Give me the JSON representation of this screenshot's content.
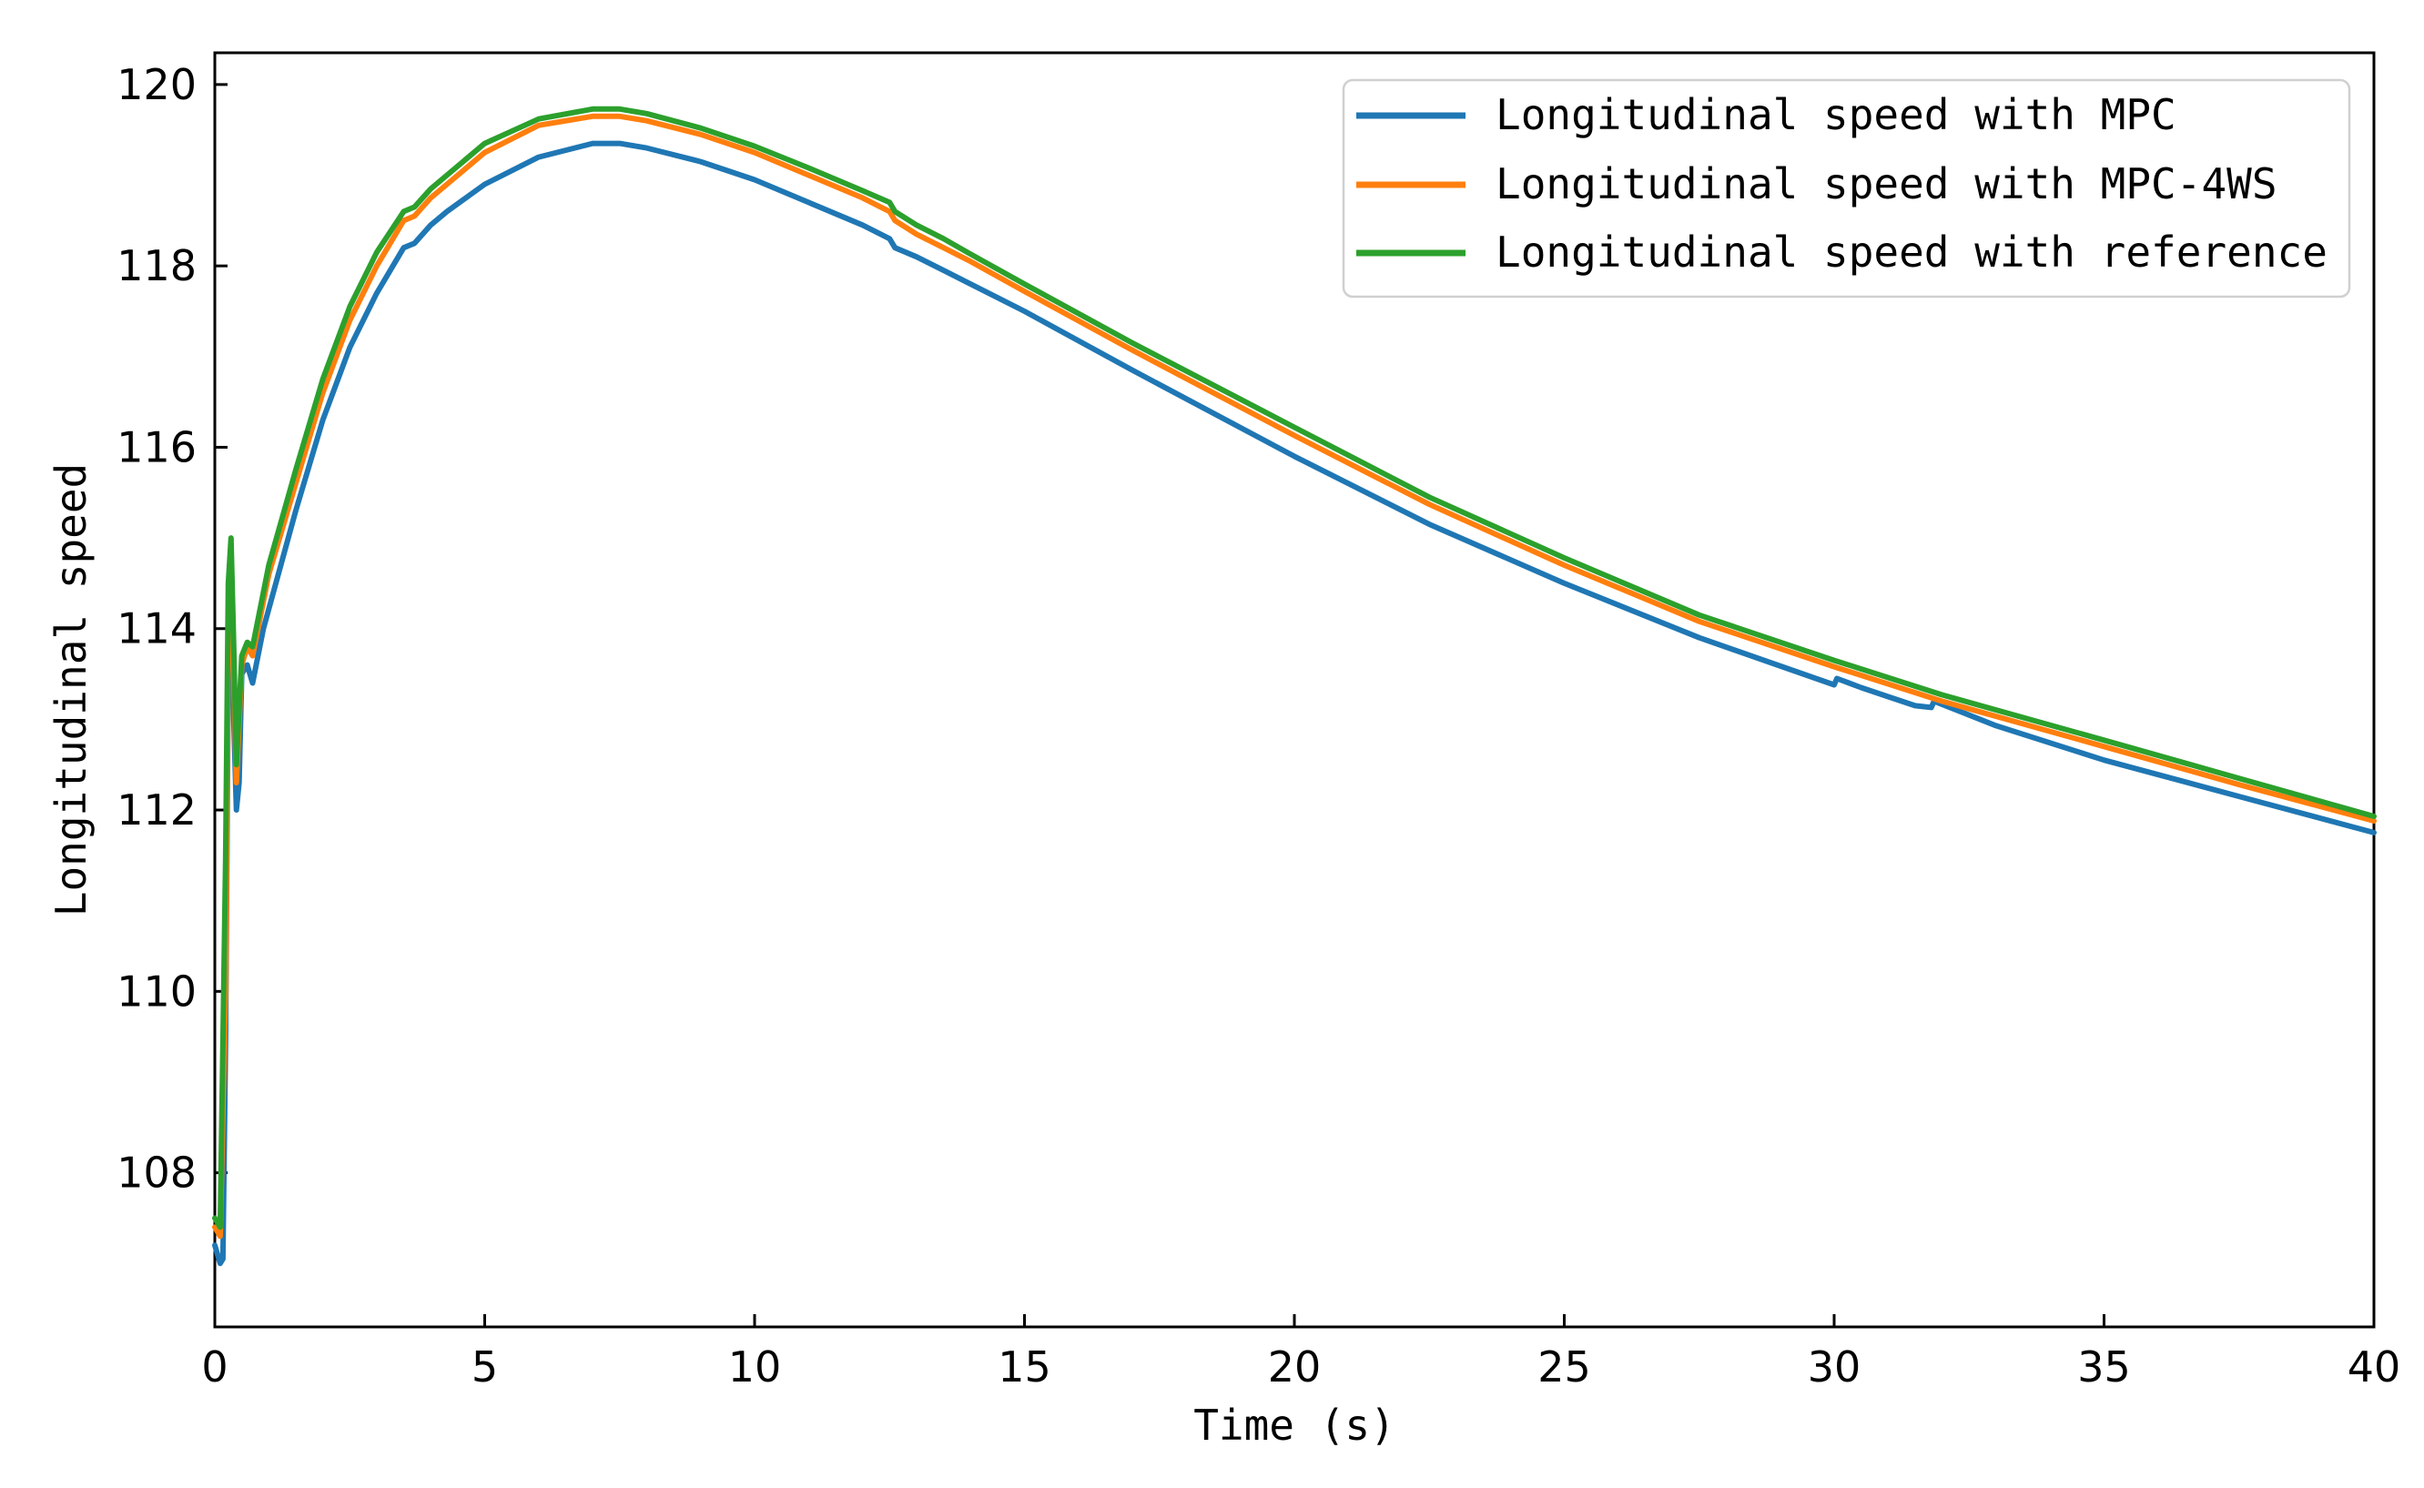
{
  "chart_data": {
    "type": "line",
    "title": "",
    "xlabel": "Time (s)",
    "ylabel": "Longitudinal speed",
    "xlim": [
      0,
      40
    ],
    "ylim": [
      106.3,
      120.35
    ],
    "xticks": [
      0,
      5,
      10,
      15,
      20,
      25,
      30,
      35,
      40
    ],
    "yticks": [
      108,
      110,
      112,
      114,
      116,
      118,
      120
    ],
    "grid": false,
    "legend_position": "top-right",
    "series": [
      {
        "name": "Longitudinal speed with MPC",
        "color": "#1f77b4",
        "points": [
          [
            0,
            107.2
          ],
          [
            0.1,
            107.0
          ],
          [
            0.15,
            107.05
          ],
          [
            0.2,
            109.5
          ],
          [
            0.25,
            113.5
          ],
          [
            0.3,
            114.8
          ],
          [
            0.35,
            113.0
          ],
          [
            0.4,
            112.0
          ],
          [
            0.45,
            112.3
          ],
          [
            0.5,
            113.5
          ],
          [
            0.6,
            113.6
          ],
          [
            0.7,
            113.4
          ],
          [
            0.9,
            114.0
          ],
          [
            1.5,
            115.3
          ],
          [
            2.0,
            116.3
          ],
          [
            2.5,
            117.1
          ],
          [
            3.0,
            117.7
          ],
          [
            3.5,
            118.2
          ],
          [
            3.7,
            118.25
          ],
          [
            4.0,
            118.45
          ],
          [
            4.3,
            118.6
          ],
          [
            5.0,
            118.9
          ],
          [
            6.0,
            119.2
          ],
          [
            7.0,
            119.35
          ],
          [
            7.5,
            119.35
          ],
          [
            8.0,
            119.3
          ],
          [
            9.0,
            119.15
          ],
          [
            10.0,
            118.95
          ],
          [
            11.0,
            118.7
          ],
          [
            12.0,
            118.45
          ],
          [
            12.5,
            118.3
          ],
          [
            12.6,
            118.2
          ],
          [
            13.0,
            118.1
          ],
          [
            13.5,
            117.95
          ],
          [
            14.0,
            117.8
          ],
          [
            15.0,
            117.5
          ],
          [
            17.0,
            116.85
          ],
          [
            20.0,
            115.9
          ],
          [
            22.5,
            115.15
          ],
          [
            25.0,
            114.5
          ],
          [
            27.5,
            113.9
          ],
          [
            30.0,
            113.38
          ],
          [
            30.05,
            113.45
          ],
          [
            30.5,
            113.35
          ],
          [
            31.0,
            113.25
          ],
          [
            31.5,
            113.15
          ],
          [
            31.8,
            113.13
          ],
          [
            31.85,
            113.2
          ],
          [
            33.0,
            112.93
          ],
          [
            35.0,
            112.55
          ],
          [
            37.5,
            112.15
          ],
          [
            40.0,
            111.75
          ]
        ]
      },
      {
        "name": "Longitudinal speed with MPC-4WS",
        "color": "#ff7f0e",
        "points": [
          [
            0,
            107.4
          ],
          [
            0.1,
            107.3
          ],
          [
            0.2,
            110.0
          ],
          [
            0.25,
            114.0
          ],
          [
            0.3,
            114.9
          ],
          [
            0.35,
            113.5
          ],
          [
            0.4,
            112.3
          ],
          [
            0.5,
            113.6
          ],
          [
            0.6,
            113.8
          ],
          [
            0.7,
            113.7
          ],
          [
            1.0,
            114.6
          ],
          [
            1.5,
            115.6
          ],
          [
            2.0,
            116.6
          ],
          [
            2.5,
            117.4
          ],
          [
            3.0,
            118.0
          ],
          [
            3.5,
            118.5
          ],
          [
            3.7,
            118.55
          ],
          [
            4.0,
            118.75
          ],
          [
            4.3,
            118.9
          ],
          [
            5.0,
            119.25
          ],
          [
            6.0,
            119.55
          ],
          [
            7.0,
            119.65
          ],
          [
            7.5,
            119.65
          ],
          [
            8.0,
            119.6
          ],
          [
            9.0,
            119.45
          ],
          [
            10.0,
            119.25
          ],
          [
            11.0,
            119.0
          ],
          [
            12.0,
            118.75
          ],
          [
            12.5,
            118.6
          ],
          [
            12.6,
            118.5
          ],
          [
            13.0,
            118.35
          ],
          [
            13.5,
            118.2
          ],
          [
            14.0,
            118.05
          ],
          [
            15.0,
            117.72
          ],
          [
            17.0,
            117.07
          ],
          [
            20.0,
            116.13
          ],
          [
            22.5,
            115.37
          ],
          [
            25.0,
            114.7
          ],
          [
            27.5,
            114.08
          ],
          [
            30.0,
            113.58
          ],
          [
            32.0,
            113.2
          ],
          [
            35.0,
            112.7
          ],
          [
            37.5,
            112.28
          ],
          [
            40.0,
            111.88
          ]
        ]
      },
      {
        "name": "Longitudinal speed with reference",
        "color": "#2ca02c",
        "points": [
          [
            0,
            107.5
          ],
          [
            0.1,
            107.4
          ],
          [
            0.2,
            111.5
          ],
          [
            0.25,
            114.5
          ],
          [
            0.3,
            115.0
          ],
          [
            0.35,
            113.8
          ],
          [
            0.4,
            112.5
          ],
          [
            0.5,
            113.7
          ],
          [
            0.6,
            113.85
          ],
          [
            0.7,
            113.8
          ],
          [
            1.0,
            114.7
          ],
          [
            1.5,
            115.75
          ],
          [
            2.0,
            116.75
          ],
          [
            2.5,
            117.55
          ],
          [
            3.0,
            118.15
          ],
          [
            3.5,
            118.6
          ],
          [
            3.7,
            118.65
          ],
          [
            4.0,
            118.85
          ],
          [
            4.3,
            119.0
          ],
          [
            5.0,
            119.35
          ],
          [
            6.0,
            119.62
          ],
          [
            7.0,
            119.73
          ],
          [
            7.5,
            119.73
          ],
          [
            8.0,
            119.68
          ],
          [
            9.0,
            119.52
          ],
          [
            10.0,
            119.32
          ],
          [
            11.0,
            119.08
          ],
          [
            12.0,
            118.83
          ],
          [
            12.5,
            118.7
          ],
          [
            12.6,
            118.6
          ],
          [
            13.0,
            118.45
          ],
          [
            13.5,
            118.3
          ],
          [
            14.0,
            118.13
          ],
          [
            15.0,
            117.8
          ],
          [
            17.0,
            117.15
          ],
          [
            20.0,
            116.22
          ],
          [
            22.5,
            115.45
          ],
          [
            25.0,
            114.78
          ],
          [
            27.5,
            114.15
          ],
          [
            30.0,
            113.65
          ],
          [
            32.0,
            113.27
          ],
          [
            35.0,
            112.77
          ],
          [
            37.5,
            112.35
          ],
          [
            40.0,
            111.93
          ]
        ]
      }
    ]
  }
}
